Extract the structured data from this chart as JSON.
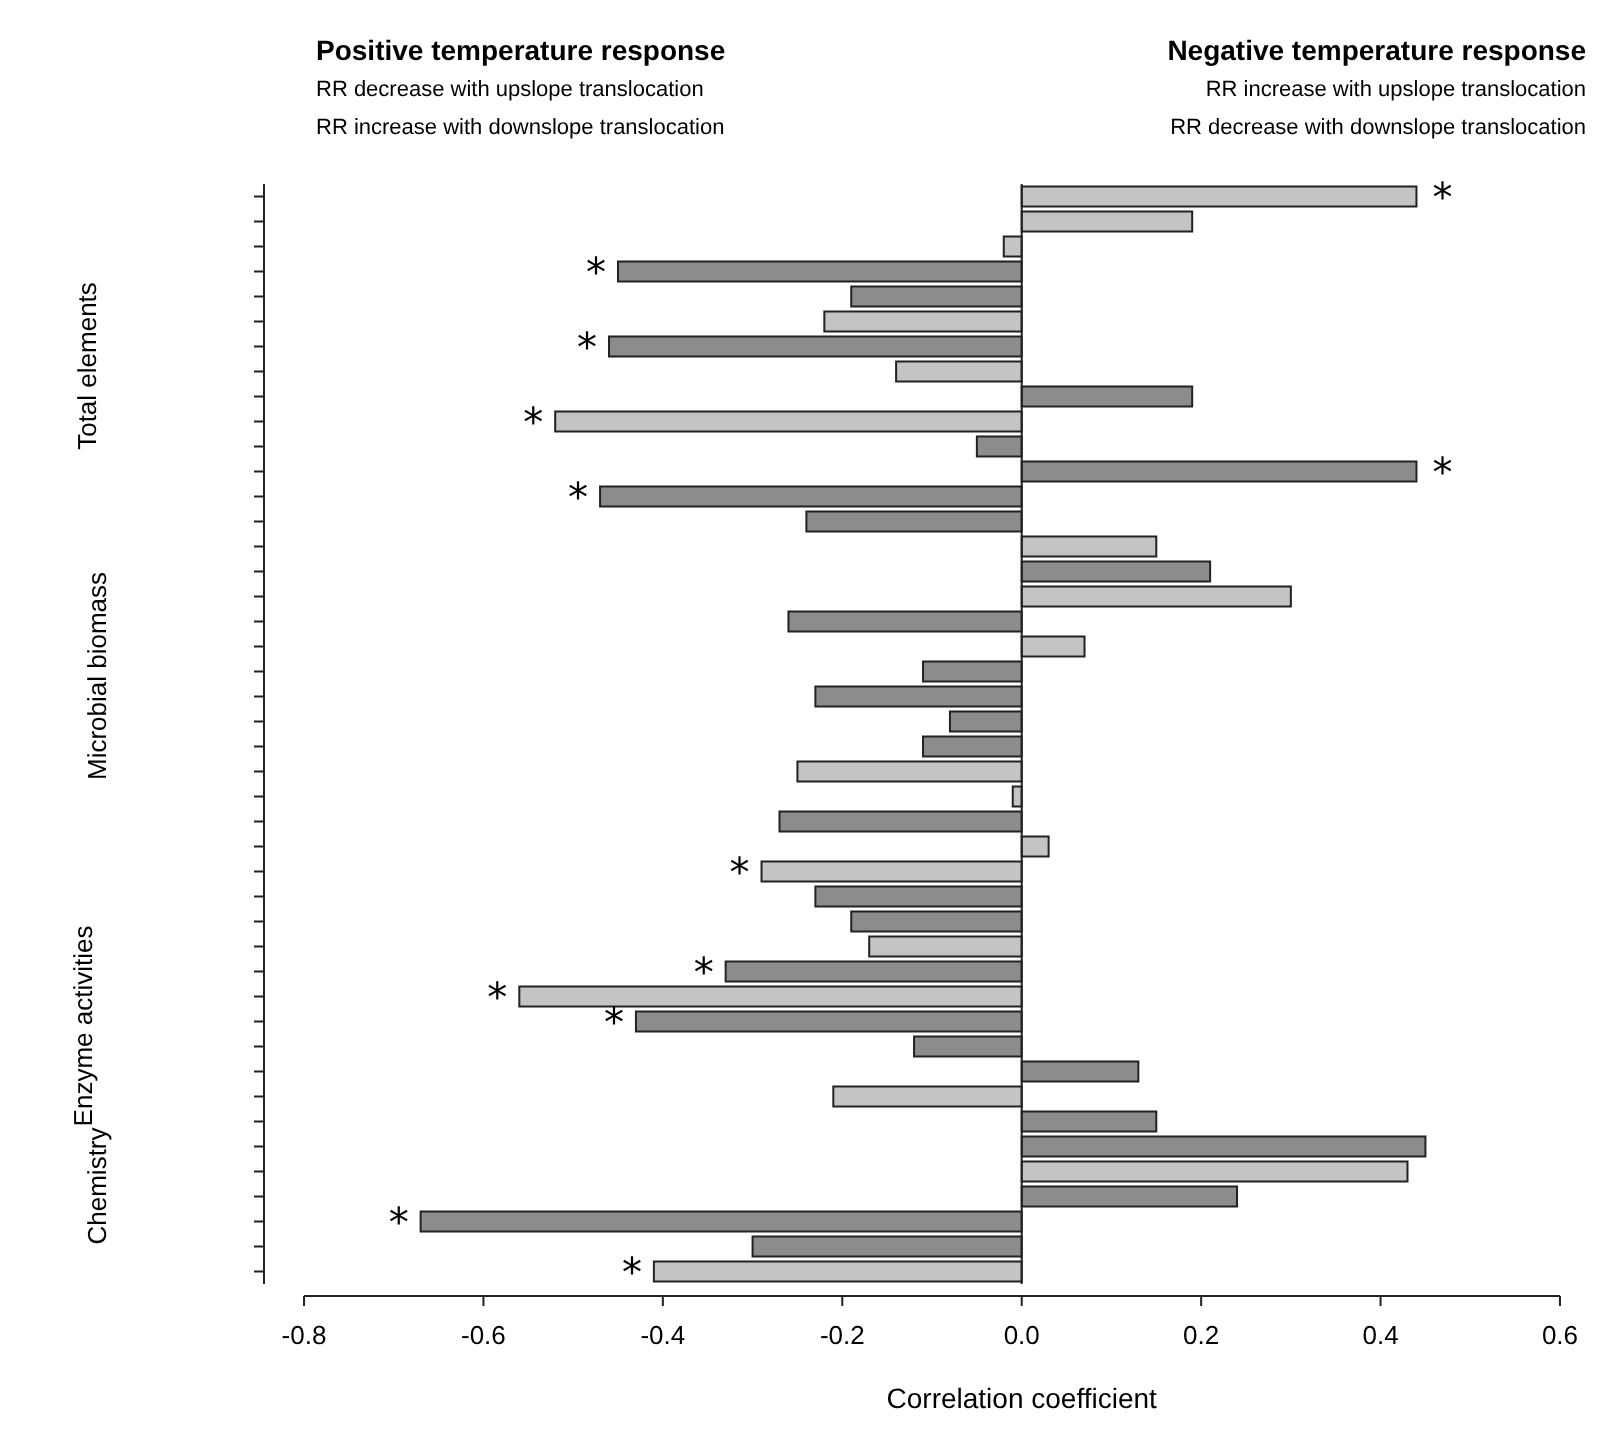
{
  "chart_data": {
    "type": "bar",
    "orientation": "horizontal",
    "xlabel": "Correlation coefficient",
    "categories": [
      null,
      null,
      null,
      null,
      null,
      null,
      null,
      null,
      null,
      null,
      null,
      null,
      null,
      null,
      null,
      null,
      null,
      null,
      null,
      null,
      null,
      null,
      null,
      null,
      null,
      null,
      null,
      null,
      null,
      null,
      null,
      null,
      null,
      null,
      null,
      null,
      null,
      null,
      null,
      null,
      null,
      null,
      null,
      null
    ],
    "values": [
      0.44,
      0.19,
      -0.02,
      -0.45,
      -0.19,
      -0.22,
      -0.46,
      -0.14,
      0.19,
      -0.52,
      -0.05,
      0.44,
      -0.47,
      -0.24,
      0.15,
      0.21,
      0.3,
      -0.26,
      0.07,
      -0.11,
      -0.23,
      -0.08,
      -0.11,
      -0.25,
      -0.01,
      -0.27,
      0.03,
      -0.29,
      -0.23,
      -0.19,
      -0.17,
      -0.33,
      -0.56,
      -0.43,
      -0.12,
      0.13,
      -0.21,
      0.15,
      0.45,
      0.43,
      0.24,
      -0.67,
      -0.3,
      -0.41
    ],
    "colors": [
      "#c4c4c4",
      "#c4c4c4",
      "#c4c4c4",
      "#8c8c8c",
      "#8c8c8c",
      "#c4c4c4",
      "#8c8c8c",
      "#c4c4c4",
      "#8c8c8c",
      "#c4c4c4",
      "#8c8c8c",
      "#8c8c8c",
      "#8c8c8c",
      "#8c8c8c",
      "#c4c4c4",
      "#8c8c8c",
      "#c4c4c4",
      "#8c8c8c",
      "#c4c4c4",
      "#8c8c8c",
      "#8c8c8c",
      "#8c8c8c",
      "#8c8c8c",
      "#c4c4c4",
      "#c4c4c4",
      "#8c8c8c",
      "#c4c4c4",
      "#c4c4c4",
      "#8c8c8c",
      "#8c8c8c",
      "#c4c4c4",
      "#8c8c8c",
      "#c4c4c4",
      "#8c8c8c",
      "#8c8c8c",
      "#8c8c8c",
      "#c4c4c4",
      "#8c8c8c",
      "#8c8c8c",
      "#c4c4c4",
      "#8c8c8c",
      "#8c8c8c",
      "#8c8c8c",
      "#c4c4c4"
    ],
    "value_labels": [
      "*",
      null,
      null,
      "*",
      null,
      null,
      "*",
      null,
      null,
      "*",
      null,
      "*",
      "*",
      null,
      null,
      null,
      null,
      null,
      null,
      null,
      null,
      null,
      null,
      null,
      null,
      null,
      null,
      "*",
      null,
      null,
      null,
      "*",
      "*",
      "*",
      null,
      null,
      null,
      null,
      null,
      null,
      null,
      "*",
      null,
      "*"
    ],
    "xlim": [
      -0.8,
      0.6
    ],
    "xticks": [
      -0.8,
      -0.6,
      -0.4,
      -0.2,
      {
        "value": 0,
        "label": "0.0"
      },
      0.2,
      0.4,
      0.6
    ],
    "annotations": [
      "Positive temperature response",
      "RR decrease with upslope translocation",
      "RR increase with downslope translocation",
      "Negative temperature response",
      "RR increase with upslope translocation",
      "RR decrease with downslope translocation",
      "Total elements",
      "Microbial biomass",
      "Enzyme activities",
      "Chemistry"
    ]
  }
}
